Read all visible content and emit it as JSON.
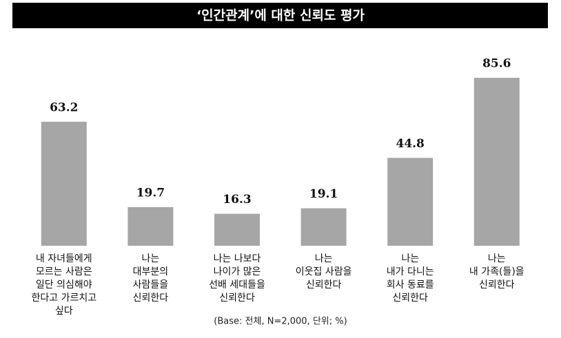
{
  "chart_data": {
    "type": "bar",
    "title": "‘인간관계’에 대한 신뢰도 평가",
    "categories": [
      [
        "내 자녀들에게",
        "모르는 사람은",
        "일단 의심해야",
        "한다고 가르치고",
        "싶다"
      ],
      [
        "나는",
        "대부분의",
        "사람들을",
        "신뢰한다"
      ],
      [
        "나는 나보다",
        "나이가 많은",
        "선배 세대들을",
        "신뢰한다"
      ],
      [
        "나는",
        "이웃집 사람을",
        "신뢰한다"
      ],
      [
        "나는",
        "내가 다니는",
        "회사 동료를",
        "신뢰한다"
      ],
      [
        "나는",
        "내 가족(들)을",
        "신뢰한다"
      ]
    ],
    "values": [
      63.2,
      19.7,
      16.3,
      19.1,
      44.8,
      85.6
    ],
    "color": "#a6a6a6",
    "footnote": "(Base: 전체, N=2,000, 단위; %)"
  }
}
